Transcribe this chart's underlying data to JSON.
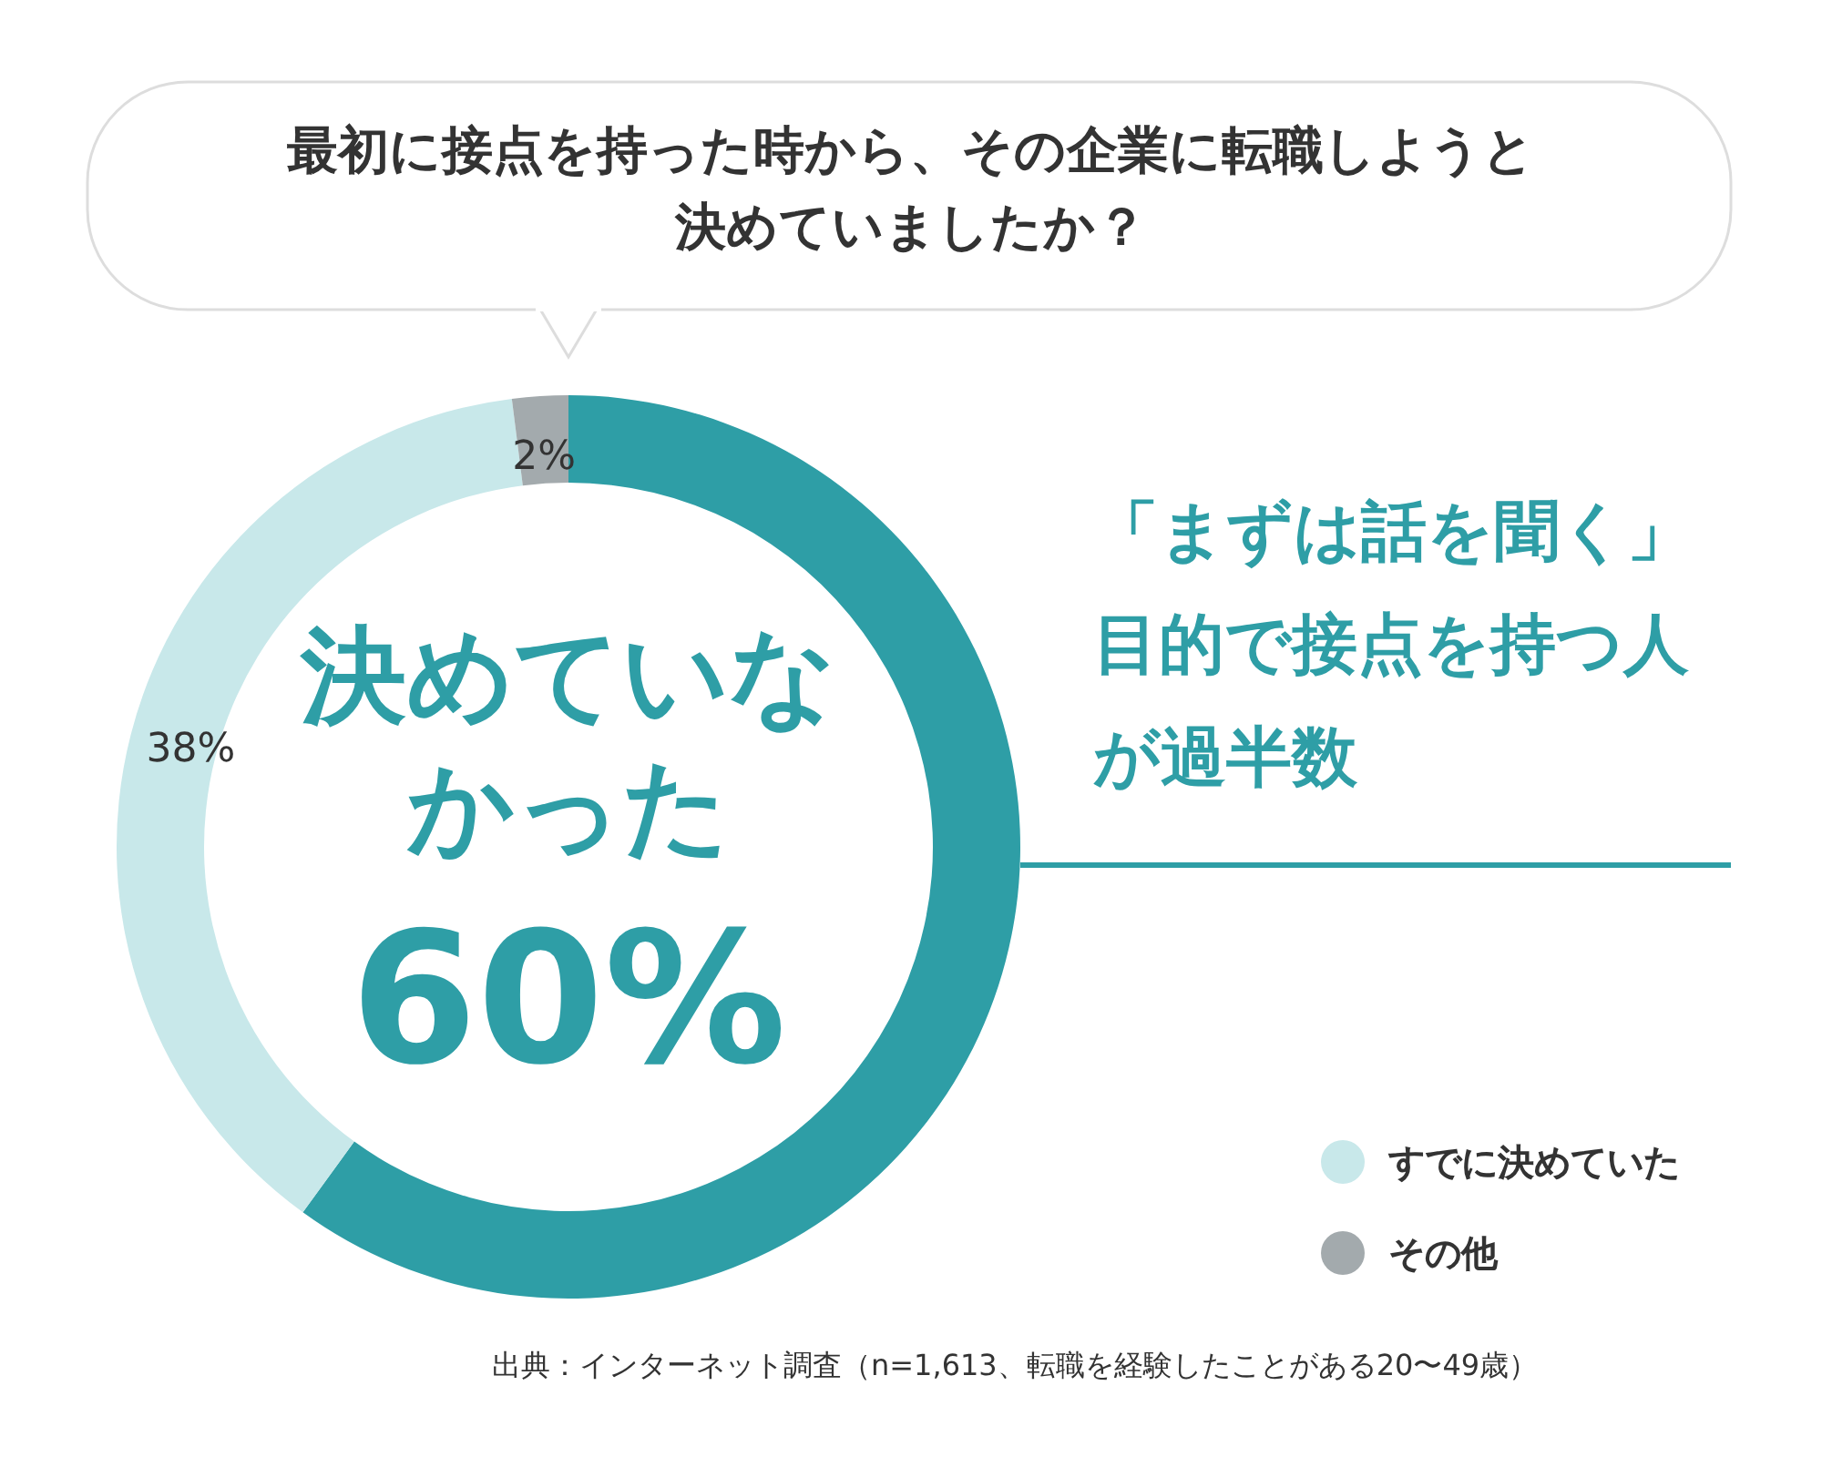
{
  "chart_data": {
    "type": "donut",
    "title": "最初に接点を持った時から、その企業に転職しようと決めていましたか？",
    "categories": [
      "決めていなかった",
      "すでに決めていた",
      "その他"
    ],
    "values": [
      60,
      38,
      2
    ],
    "colors": [
      "#2e9ea6",
      "#c8e8ea",
      "#a3aaad"
    ],
    "value_labels": [
      "60%",
      "38%",
      "2%"
    ],
    "legend": "bottom right",
    "annotations": [
      "「まずは話を聞く」目的で接点を持つ人が過半数",
      "出典：インターネット調査（n=1,613、転職を経験したことがある20〜49歳）"
    ]
  }
}
